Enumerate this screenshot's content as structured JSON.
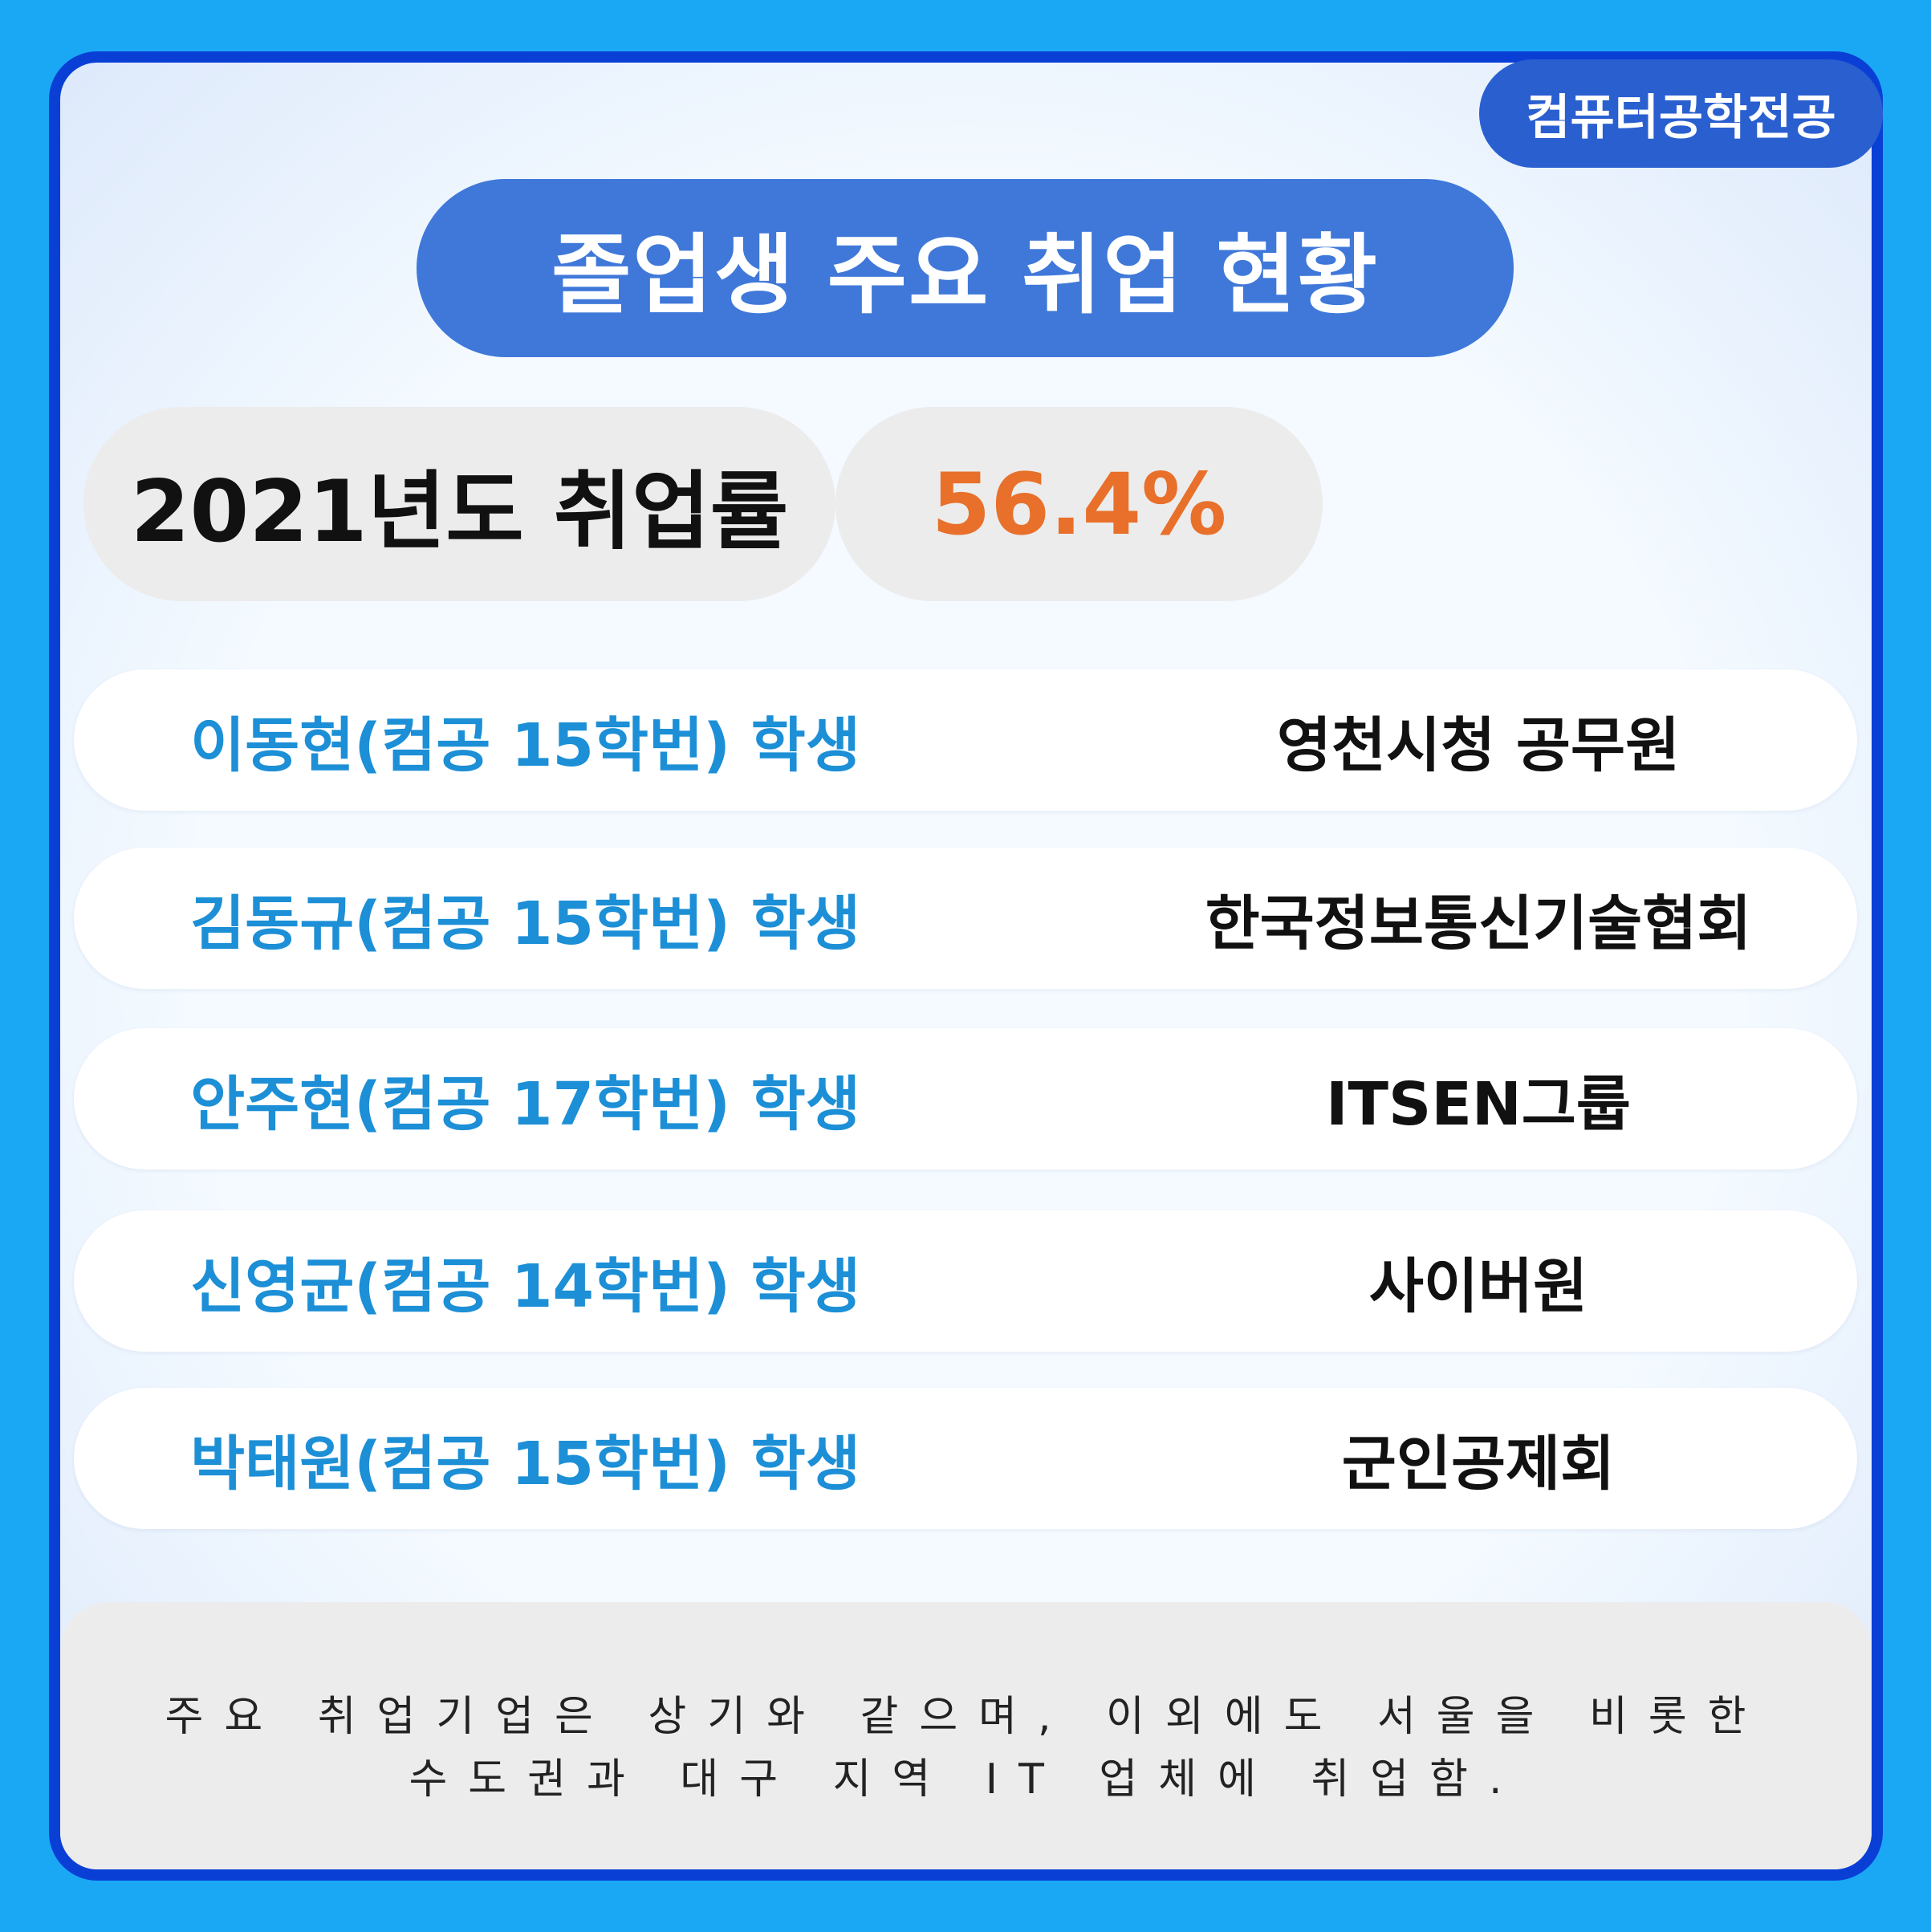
{
  "badge": "컴퓨터공학전공",
  "title": "졸업생 주요 취업 현황",
  "rate": {
    "label": "2021년도 취업률",
    "value": "56.4%",
    "value_color": "#e8702a"
  },
  "rows": [
    {
      "name": "이동현(컴공 15학번) 학생",
      "org": "영천시청 공무원"
    },
    {
      "name": "김동규(컴공 15학번) 학생",
      "org": "한국정보통신기술협회"
    },
    {
      "name": "안주현(컴공 17학번) 학생",
      "org": "ITSEN그룹"
    },
    {
      "name": "신영균(컴공 14학번) 학생",
      "org": "사이버원"
    },
    {
      "name": "박태원(컴공 15학번) 학생",
      "org": "군인공제회"
    }
  ],
  "footer": {
    "line1": "주요 취업기업은 상기와 같으며, 이외에도 서울을 비롯한",
    "line2": "수도권과 대구 지역 IT 업체에 취업함."
  },
  "colors": {
    "background": "#1aa8f5",
    "frame": "#0a3fd6",
    "title_pill": "#3f78d9",
    "name_text": "#1c8fd6"
  }
}
